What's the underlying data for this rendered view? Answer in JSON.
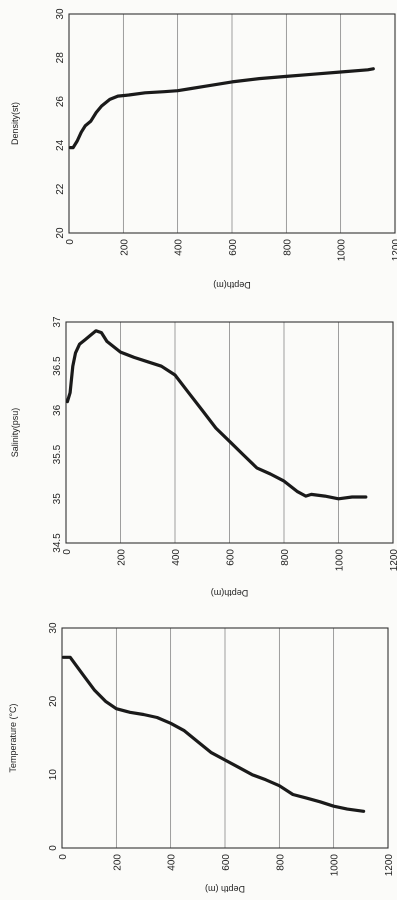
{
  "chart_data": [
    {
      "type": "line",
      "orientation": "rotated-90",
      "title": "",
      "xlabel": "Depth(m)",
      "ylabel": "Density(st)",
      "xlim": [
        0,
        1200
      ],
      "ylim": [
        20,
        30
      ],
      "xticks": [
        "0",
        "200",
        "400",
        "600",
        "800",
        "1000",
        "1200"
      ],
      "yticks": [
        "20",
        "22",
        "24",
        "26",
        "28",
        "30"
      ],
      "grid": "vertical",
      "legend": "none",
      "series": [
        {
          "x": [
            5,
            15,
            30,
            45,
            60,
            80,
            100,
            120,
            150,
            180,
            220,
            280,
            350,
            400,
            450,
            500,
            600,
            700,
            800,
            900,
            1000,
            1100,
            1120
          ],
          "y": [
            23.9,
            23.9,
            24.2,
            24.6,
            24.9,
            25.1,
            25.5,
            25.8,
            26.1,
            26.25,
            26.3,
            26.4,
            26.45,
            26.5,
            26.6,
            26.7,
            26.9,
            27.05,
            27.15,
            27.25,
            27.35,
            27.45,
            27.5
          ]
        }
      ]
    },
    {
      "type": "line",
      "orientation": "rotated-90",
      "title": "",
      "xlabel": "Depth(m)",
      "ylabel": "Salinity(psu)",
      "xlim": [
        0,
        1200
      ],
      "ylim": [
        34.5,
        37
      ],
      "xticks": [
        "0",
        "200",
        "400",
        "600",
        "800",
        "1000",
        "1200"
      ],
      "yticks": [
        "34.5",
        "35",
        "35.5",
        "36",
        "36.5",
        "37"
      ],
      "grid": "vertical",
      "legend": "none",
      "series": [
        {
          "x": [
            5,
            15,
            25,
            35,
            50,
            70,
            90,
            110,
            130,
            150,
            200,
            250,
            300,
            350,
            400,
            450,
            500,
            550,
            600,
            650,
            700,
            750,
            800,
            850,
            880,
            900,
            950,
            1000,
            1050,
            1100
          ],
          "y": [
            36.1,
            36.2,
            36.5,
            36.65,
            36.75,
            36.8,
            36.85,
            36.9,
            36.88,
            36.78,
            36.66,
            36.6,
            36.55,
            36.5,
            36.4,
            36.2,
            36.0,
            35.8,
            35.65,
            35.5,
            35.35,
            35.28,
            35.2,
            35.08,
            35.03,
            35.05,
            35.03,
            35.0,
            35.02,
            35.02
          ]
        }
      ]
    },
    {
      "type": "line",
      "orientation": "rotated-90",
      "title": "",
      "xlabel": "Depth (m)",
      "ylabel": "Temperature (°C)",
      "xlim": [
        0,
        1200
      ],
      "ylim": [
        0,
        30
      ],
      "xticks": [
        "0",
        "200",
        "400",
        "600",
        "800",
        "1000",
        "1200"
      ],
      "yticks": [
        "0",
        "10",
        "20",
        "30"
      ],
      "grid": "vertical",
      "legend": "none",
      "series": [
        {
          "x": [
            5,
            30,
            50,
            80,
            120,
            160,
            200,
            250,
            300,
            350,
            400,
            450,
            500,
            550,
            600,
            650,
            700,
            750,
            800,
            850,
            900,
            950,
            1000,
            1050,
            1110
          ],
          "y": [
            26,
            26,
            25,
            23.5,
            21.5,
            20,
            19,
            18.5,
            18.2,
            17.8,
            17,
            16,
            14.5,
            13,
            12,
            11,
            10,
            9.3,
            8.5,
            7.3,
            6.8,
            6.3,
            5.7,
            5.3,
            5.0
          ]
        }
      ]
    }
  ]
}
